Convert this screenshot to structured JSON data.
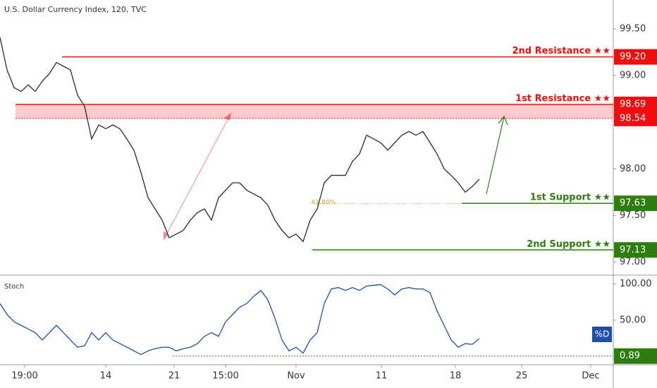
{
  "chart_data": [
    {
      "type": "line",
      "title": "U.S. Dollar Currency Index, 120, TVC",
      "color": "#2a2a2a",
      "x": [
        0,
        1,
        2,
        3,
        4,
        5,
        6,
        7,
        8,
        9,
        10,
        11,
        12,
        13,
        14,
        15,
        16,
        17,
        18,
        19,
        20,
        21,
        22,
        23,
        24,
        25,
        26,
        27,
        28,
        29,
        30,
        31,
        32,
        33,
        34,
        35,
        36,
        37,
        38,
        39,
        40,
        41,
        42,
        43,
        44,
        45,
        46,
        47,
        48,
        49,
        50,
        51,
        52,
        53,
        54,
        55,
        56,
        57,
        58,
        59,
        60,
        61,
        62,
        63,
        64,
        65,
        66,
        67,
        68
      ],
      "values": [
        99.41,
        99.06,
        98.87,
        98.83,
        98.9,
        98.83,
        98.94,
        99.02,
        99.14,
        99.1,
        99.06,
        98.79,
        98.67,
        98.32,
        98.47,
        98.43,
        98.47,
        98.43,
        98.32,
        98.2,
        97.96,
        97.69,
        97.57,
        97.45,
        97.26,
        97.3,
        97.34,
        97.45,
        97.53,
        97.57,
        97.45,
        97.69,
        97.77,
        97.85,
        97.85,
        97.77,
        97.73,
        97.69,
        97.61,
        97.45,
        97.34,
        97.26,
        97.3,
        97.22,
        97.45,
        97.57,
        97.85,
        97.93,
        97.93,
        97.93,
        98.08,
        98.16,
        98.36,
        98.32,
        98.28,
        98.2,
        98.28,
        98.36,
        98.4,
        98.36,
        98.4,
        98.28,
        98.16,
        98,
        97.93,
        97.85,
        97.75,
        97.81,
        97.89
      ],
      "xlim": [
        0,
        87
      ],
      "xticks": [
        {
          "value": 3.5,
          "label": "19:00"
        },
        {
          "value": 15,
          "label": "14"
        },
        {
          "value": 24.7,
          "label": "21"
        },
        {
          "value": 32,
          "label": "15:00"
        },
        {
          "value": 42,
          "label": "Nov"
        },
        {
          "value": 54.1,
          "label": "11"
        },
        {
          "value": 64.6,
          "label": "18"
        },
        {
          "value": 74,
          "label": "25"
        },
        {
          "value": 83.8,
          "label": "Dec"
        }
      ],
      "ylim": [
        96.86,
        99.81
      ],
      "yticks": [
        {
          "value": 99.5,
          "label": "99.50"
        },
        {
          "value": 99,
          "label": "99.00"
        },
        {
          "value": 98,
          "label": "98.00"
        },
        {
          "value": 97.5,
          "label": "97.50"
        },
        {
          "value": 97,
          "label": "97.00"
        }
      ],
      "levels": [
        {
          "name": "2nd Resistance ★★",
          "value": 99.2,
          "value_label": "99.20",
          "color": "#f00d0d",
          "from": 8.8
        },
        {
          "name": "1st Resistance ★★",
          "value": 98.69,
          "value_label": "98.69",
          "color": "#f00d0d",
          "from": 2.2
        },
        {
          "name": "1st Support ★★",
          "value": 97.63,
          "value_label": "97.63",
          "color": "#2e7d0f",
          "from": 65.5
        },
        {
          "name": "2nd Support ★★",
          "value": 97.13,
          "value_label": "97.13",
          "color": "#2e7d0f",
          "from": 44.3
        }
      ],
      "zone": {
        "values": [
          98.54,
          98.69
        ],
        "value_label": "98.54",
        "color": "#f00d0d",
        "from": 2.2
      },
      "fib": {
        "label": "61.80%",
        "value": 97.63,
        "from": 44
      }
    },
    {
      "type": "line",
      "title": "Stoch",
      "x": [
        0,
        1,
        2,
        3,
        4,
        5,
        6,
        7,
        8,
        9,
        10,
        11,
        12,
        13,
        14,
        15,
        16,
        17,
        18,
        19,
        20,
        21,
        22,
        23,
        24,
        25,
        26,
        27,
        28,
        29,
        30,
        31,
        32,
        33,
        34,
        35,
        36,
        37,
        38,
        39,
        40,
        41,
        42,
        43,
        44,
        45,
        46,
        47,
        48,
        49,
        50,
        51,
        52,
        53,
        54,
        55,
        56,
        57,
        58,
        59,
        60,
        61,
        62,
        63,
        64,
        65,
        66,
        67,
        68
      ],
      "series": [
        {
          "name": "%D",
          "color": "#1f4fa8",
          "values": [
            73,
            58,
            48,
            43,
            38,
            33,
            23,
            33,
            43,
            33,
            23,
            13,
            15,
            33,
            23,
            33,
            23,
            18,
            13,
            8,
            3,
            8,
            11,
            13,
            13,
            8,
            11,
            13,
            18,
            28,
            33,
            28,
            48,
            58,
            68,
            73,
            83,
            91,
            78,
            53,
            23,
            8,
            13,
            5,
            23,
            33,
            73,
            93,
            95,
            91,
            95,
            91,
            97,
            98,
            99,
            93,
            85,
            93,
            95,
            93,
            93,
            88,
            63,
            43,
            23,
            13,
            18,
            17,
            25
          ]
        }
      ],
      "xlim": [
        0,
        87
      ],
      "ylim": [
        -11,
        112
      ],
      "yticks": [
        {
          "value": 100,
          "label": "100.00"
        },
        {
          "value": 50,
          "label": "50.00"
        }
      ],
      "marker": {
        "value": 0.89,
        "label": "0.89",
        "color": "#2e7d0f",
        "from": 24.5
      }
    }
  ]
}
